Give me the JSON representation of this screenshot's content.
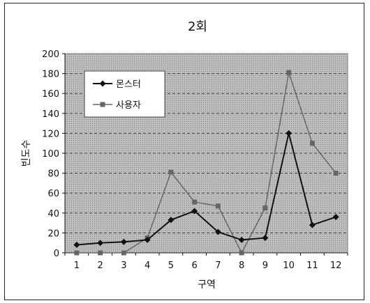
{
  "chart_data": {
    "type": "line",
    "title": "2회",
    "xlabel": "구역",
    "ylabel": "빈도수",
    "categories": [
      "1",
      "2",
      "3",
      "4",
      "5",
      "6",
      "7",
      "8",
      "9",
      "10",
      "11",
      "12"
    ],
    "ylim": [
      0,
      200
    ],
    "yticks": [
      0,
      20,
      40,
      60,
      80,
      100,
      120,
      140,
      160,
      180,
      200
    ],
    "grid": true,
    "legend_position": "top-left",
    "series": [
      {
        "name": "몬스터",
        "values": [
          8,
          10,
          11,
          13,
          33,
          42,
          21,
          13,
          15,
          120,
          28,
          36
        ],
        "color": "#111111",
        "marker": "diamond"
      },
      {
        "name": "사용자",
        "values": [
          0,
          0,
          0,
          15,
          81,
          51,
          47,
          0,
          45,
          181,
          110,
          80
        ],
        "color": "#666666",
        "marker": "square"
      }
    ]
  }
}
